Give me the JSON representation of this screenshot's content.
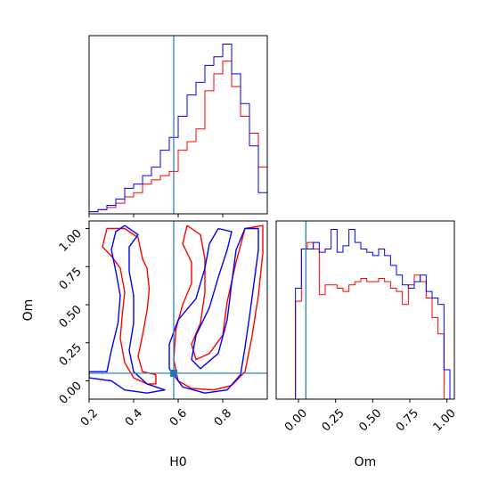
{
  "chart_data": {
    "type": "corner",
    "colors": {
      "series_red": "#ff0000",
      "series_blue": "#0000ff",
      "truth": "#1f77b4"
    },
    "truth": {
      "H0": 0.58,
      "Om": 0.05
    },
    "panels": [
      {
        "id": "hist-h0",
        "type": "step-histogram",
        "variable": "H0",
        "xlim": [
          0.2,
          1.0
        ],
        "bins": [
          0.2,
          0.24,
          0.28,
          0.32,
          0.36,
          0.4,
          0.44,
          0.48,
          0.52,
          0.56,
          0.6,
          0.64,
          0.68,
          0.72,
          0.76,
          0.8,
          0.84,
          0.88,
          0.92,
          0.96,
          1.0
        ],
        "series": [
          {
            "color": "red",
            "counts": [
              1,
              2,
              3,
              5,
              8,
              10,
              14,
              16,
              18,
              20,
              30,
              34,
              40,
              58,
              66,
              72,
              60,
              46,
              38,
              22
            ]
          },
          {
            "color": "blue",
            "counts": [
              1,
              2,
              4,
              7,
              12,
              14,
              18,
              22,
              30,
              36,
              46,
              56,
              62,
              70,
              74,
              80,
              66,
              52,
              32,
              10
            ]
          }
        ]
      },
      {
        "id": "hist-om",
        "type": "step-histogram",
        "variable": "Om",
        "xlim": [
          -0.15,
          1.05
        ],
        "xticks": [
          "0.00",
          "0.25",
          "0.50",
          "0.75",
          "1.00"
        ],
        "xtick_values": [
          0,
          0.25,
          0.5,
          0.75,
          1.0
        ],
        "xlabel": "Om",
        "bins": [
          -0.06,
          -0.02,
          0.02,
          0.06,
          0.1,
          0.14,
          0.18,
          0.22,
          0.26,
          0.3,
          0.34,
          0.38,
          0.42,
          0.46,
          0.5,
          0.54,
          0.58,
          0.62,
          0.66,
          0.7,
          0.74,
          0.78,
          0.82,
          0.86,
          0.9,
          0.94,
          0.98,
          1.02
        ],
        "series": [
          {
            "color": "red",
            "counts": [
              0,
              60,
              92,
              96,
              92,
              64,
              70,
              70,
              68,
              66,
              70,
              72,
              74,
              72,
              72,
              74,
              72,
              68,
              66,
              58,
              70,
              76,
              72,
              62,
              50,
              40,
              0
            ]
          },
          {
            "color": "blue",
            "counts": [
              0,
              68,
              92,
              92,
              96,
              90,
              92,
              104,
              90,
              94,
              104,
              96,
              92,
              90,
              88,
              92,
              88,
              82,
              76,
              70,
              68,
              72,
              76,
              66,
              62,
              58,
              18
            ]
          }
        ]
      },
      {
        "id": "contour-h0-om",
        "type": "contour",
        "xvar": "H0",
        "yvar": "Om",
        "xlim": [
          0.2,
          1.0
        ],
        "ylim": [
          -0.12,
          1.05
        ],
        "xticks": [
          "0.2",
          "0.4",
          "0.6",
          "0.8"
        ],
        "xtick_values": [
          0.2,
          0.4,
          0.6,
          0.8
        ],
        "yticks": [
          "0.00",
          "0.25",
          "0.50",
          "0.75",
          "1.00"
        ],
        "ytick_values": [
          0,
          0.25,
          0.5,
          0.75,
          1.0
        ],
        "xlabel": "H0",
        "ylabel": "Om",
        "series": [
          {
            "color": "red",
            "contours": [
              [
                [
                  0.28,
                  1.0
                ],
                [
                  0.26,
                  0.88
                ],
                [
                  0.3,
                  0.82
                ],
                [
                  0.34,
                  0.74
                ],
                [
                  0.36,
                  0.58
                ],
                [
                  0.35,
                  0.45
                ],
                [
                  0.34,
                  0.28
                ],
                [
                  0.36,
                  0.12
                ],
                [
                  0.4,
                  0.02
                ],
                [
                  0.46,
                  -0.02
                ],
                [
                  0.5,
                  -0.02
                ],
                [
                  0.5,
                  0.04
                ],
                [
                  0.44,
                  0.06
                ],
                [
                  0.42,
                  0.16
                ],
                [
                  0.44,
                  0.3
                ],
                [
                  0.46,
                  0.46
                ],
                [
                  0.47,
                  0.6
                ],
                [
                  0.46,
                  0.74
                ],
                [
                  0.44,
                  0.8
                ],
                [
                  0.42,
                  0.94
                ],
                [
                  0.36,
                  1.0
                ],
                [
                  0.28,
                  1.0
                ]
              ],
              [
                [
                  0.64,
                  1.02
                ],
                [
                  0.62,
                  0.9
                ],
                [
                  0.66,
                  0.78
                ],
                [
                  0.66,
                  0.64
                ],
                [
                  0.62,
                  0.5
                ],
                [
                  0.59,
                  0.34
                ],
                [
                  0.58,
                  0.14
                ],
                [
                  0.6,
                  0.0
                ],
                [
                  0.66,
                  -0.05
                ],
                [
                  0.76,
                  -0.06
                ],
                [
                  0.84,
                  -0.03
                ],
                [
                  0.9,
                  0.06
                ],
                [
                  0.93,
                  0.28
                ],
                [
                  0.96,
                  0.56
                ],
                [
                  0.98,
                  0.84
                ],
                [
                  0.98,
                  1.02
                ],
                [
                  0.9,
                  1.0
                ],
                [
                  0.86,
                  0.78
                ],
                [
                  0.82,
                  0.52
                ],
                [
                  0.8,
                  0.3
                ],
                [
                  0.74,
                  0.18
                ],
                [
                  0.68,
                  0.14
                ],
                [
                  0.66,
                  0.24
                ],
                [
                  0.7,
                  0.38
                ],
                [
                  0.72,
                  0.58
                ],
                [
                  0.72,
                  0.8
                ],
                [
                  0.7,
                  0.96
                ],
                [
                  0.64,
                  1.02
                ]
              ]
            ]
          },
          {
            "color": "blue",
            "contours": [
              [
                [
                  0.36,
                  1.02
                ],
                [
                  0.32,
                  0.98
                ],
                [
                  0.3,
                  0.86
                ],
                [
                  0.32,
                  0.72
                ],
                [
                  0.34,
                  0.56
                ],
                [
                  0.33,
                  0.38
                ],
                [
                  0.3,
                  0.2
                ],
                [
                  0.28,
                  0.06
                ],
                [
                  0.2,
                  0.06
                ],
                [
                  0.2,
                  0.02
                ],
                [
                  0.3,
                  0.0
                ],
                [
                  0.36,
                  -0.06
                ],
                [
                  0.46,
                  -0.08
                ],
                [
                  0.54,
                  -0.06
                ],
                [
                  0.46,
                  -0.02
                ],
                [
                  0.4,
                  0.06
                ],
                [
                  0.38,
                  0.2
                ],
                [
                  0.4,
                  0.38
                ],
                [
                  0.4,
                  0.56
                ],
                [
                  0.38,
                  0.72
                ],
                [
                  0.38,
                  0.88
                ],
                [
                  0.42,
                  0.96
                ],
                [
                  0.36,
                  1.02
                ]
              ],
              [
                [
                  0.78,
                  1.0
                ],
                [
                  0.74,
                  0.9
                ],
                [
                  0.72,
                  0.74
                ],
                [
                  0.68,
                  0.54
                ],
                [
                  0.6,
                  0.4
                ],
                [
                  0.56,
                  0.24
                ],
                [
                  0.56,
                  0.08
                ],
                [
                  0.62,
                  -0.04
                ],
                [
                  0.72,
                  -0.08
                ],
                [
                  0.82,
                  -0.06
                ],
                [
                  0.88,
                  0.04
                ],
                [
                  0.9,
                  0.22
                ],
                [
                  0.92,
                  0.42
                ],
                [
                  0.94,
                  0.64
                ],
                [
                  0.96,
                  0.86
                ],
                [
                  0.96,
                  1.0
                ],
                [
                  0.9,
                  1.0
                ],
                [
                  0.86,
                  0.86
                ],
                [
                  0.84,
                  0.64
                ],
                [
                  0.82,
                  0.4
                ],
                [
                  0.78,
                  0.18
                ],
                [
                  0.7,
                  0.08
                ],
                [
                  0.66,
                  0.14
                ],
                [
                  0.68,
                  0.3
                ],
                [
                  0.74,
                  0.48
                ],
                [
                  0.78,
                  0.68
                ],
                [
                  0.82,
                  0.86
                ],
                [
                  0.84,
                  0.98
                ],
                [
                  0.78,
                  1.0
                ]
              ]
            ]
          }
        ]
      }
    ]
  }
}
